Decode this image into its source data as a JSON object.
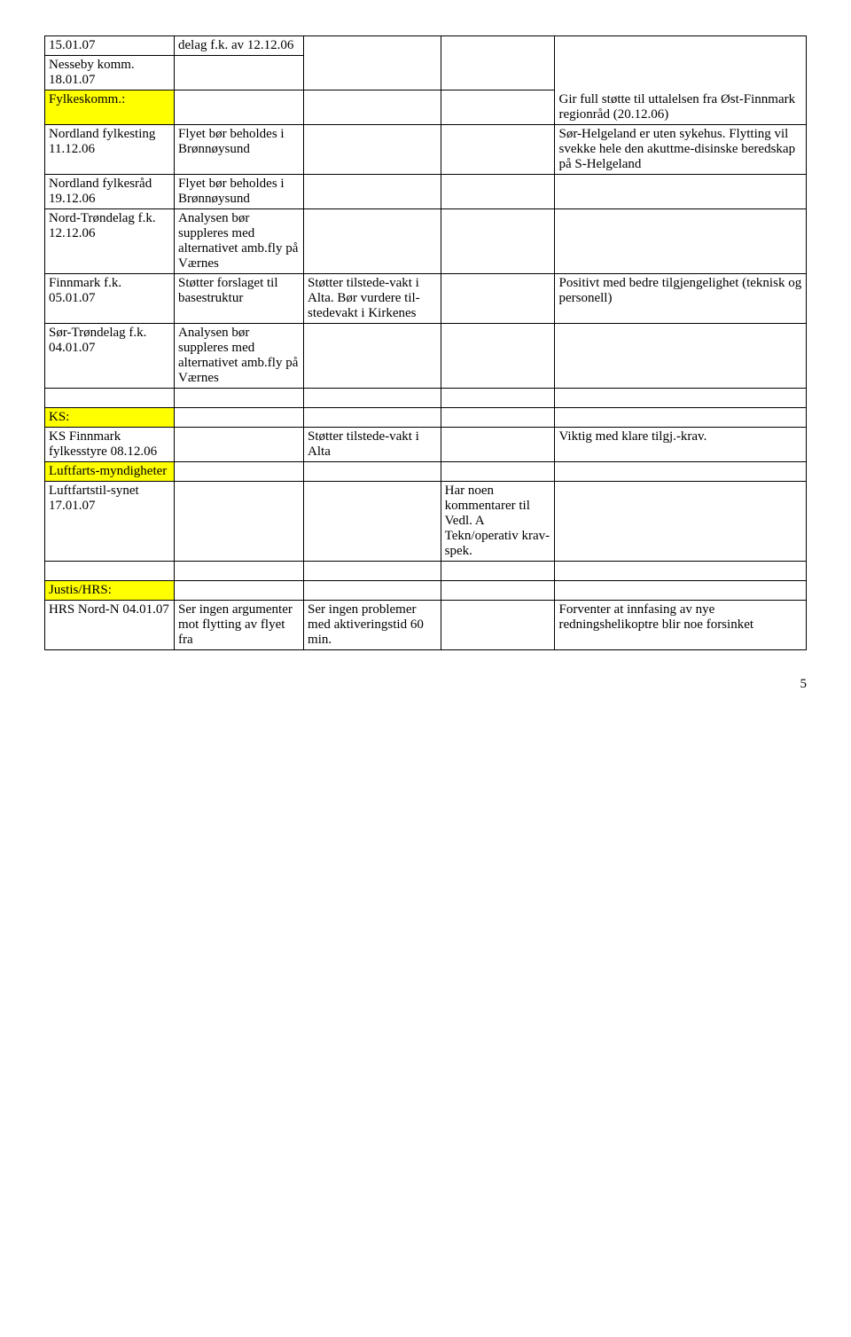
{
  "colors": {
    "highlight": "#ffff00",
    "border": "#000000",
    "background": "#ffffff",
    "text": "#000000"
  },
  "rows": {
    "r1": {
      "c1": "15.01.07",
      "c2": "delag f.k. av 12.12.06"
    },
    "r2": {
      "c1": "Nesseby komm. 18.01.07",
      "c5": "Gir full støtte til uttalelsen fra Øst-Finnmark regionråd (20.12.06)"
    },
    "r3": {
      "c1": "Fylkeskomm.:"
    },
    "r4": {
      "c1": "Nordland fylkesting 11.12.06",
      "c2": "Flyet bør beholdes i Brønnøysund",
      "c5": "Sør-Helgeland er uten sykehus. Flytting vil svekke hele den akuttme-disinske beredskap på S-Helgeland"
    },
    "r5": {
      "c1": "Nordland fylkesråd 19.12.06",
      "c2": "Flyet bør beholdes i Brønnøysund"
    },
    "r6": {
      "c1": "Nord-Trøndelag f.k. 12.12.06",
      "c2": "Analysen bør suppleres med alternativet amb.fly på Værnes"
    },
    "r7": {
      "c1": "Finnmark f.k. 05.01.07",
      "c2": "Støtter forslaget til basestruktur",
      "c3": "Støtter tilstede-vakt i Alta. Bør vurdere til-stedevakt i Kirkenes",
      "c5": "Positivt med bedre tilgjengelighet (teknisk og personell)"
    },
    "r8": {
      "c1": "Sør-Trøndelag f.k. 04.01.07",
      "c2": "Analysen bør suppleres med alternativet amb.fly på Værnes"
    },
    "r10": {
      "c1": "KS:"
    },
    "r11": {
      "c1": "KS Finnmark fylkesstyre 08.12.06",
      "c3": "Støtter tilstede-vakt i Alta",
      "c5": "Viktig med klare tilgj.-krav."
    },
    "r12": {
      "c1": "Luftfarts-myndigheter"
    },
    "r13": {
      "c1": "Luftfartstil-synet 17.01.07",
      "c4": "Har noen kommentarer til Vedl. A Tekn/operativ krav-spek."
    },
    "r15": {
      "c1": "Justis/HRS:"
    },
    "r16": {
      "c1": "HRS Nord-N 04.01.07",
      "c2": "Ser ingen argumenter mot flytting av flyet fra",
      "c3": "Ser ingen problemer med aktiveringstid 60 min.",
      "c5": "Forventer at innfasing av nye redningshelikoptre blir noe forsinket"
    }
  },
  "page_number": "5"
}
